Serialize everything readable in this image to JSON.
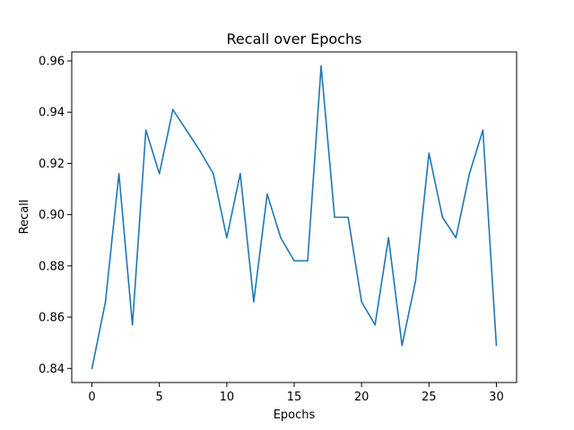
{
  "chart_data": {
    "type": "line",
    "title": "Recall over Epochs",
    "xlabel": "Epochs",
    "ylabel": "Recall",
    "xlim": [
      -1.5,
      31.5
    ],
    "ylim": [
      0.8345,
      0.9635
    ],
    "xticks": [
      0,
      5,
      10,
      15,
      20,
      25,
      30
    ],
    "xtick_labels": [
      "0",
      "5",
      "10",
      "15",
      "20",
      "25",
      "30"
    ],
    "yticks": [
      0.84,
      0.86,
      0.88,
      0.9,
      0.92,
      0.94,
      0.96
    ],
    "ytick_labels": [
      "0.84",
      "0.86",
      "0.88",
      "0.90",
      "0.92",
      "0.94",
      "0.96"
    ],
    "grid": false,
    "legend": "none",
    "series": [
      {
        "color": "#1f77b4",
        "x": [
          0,
          1,
          2,
          3,
          4,
          5,
          6,
          7,
          8,
          9,
          10,
          11,
          12,
          13,
          14,
          15,
          16,
          17,
          18,
          19,
          20,
          21,
          22,
          23,
          24,
          25,
          26,
          27,
          28,
          29,
          30
        ],
        "y": [
          0.84,
          0.866,
          0.916,
          0.857,
          0.933,
          0.916,
          0.941,
          0.933,
          0.925,
          0.916,
          0.891,
          0.916,
          0.866,
          0.908,
          0.891,
          0.882,
          0.882,
          0.958,
          0.899,
          0.899,
          0.866,
          0.857,
          0.891,
          0.849,
          0.874,
          0.924,
          0.899,
          0.891,
          0.916,
          0.933,
          0.849
        ]
      }
    ]
  }
}
